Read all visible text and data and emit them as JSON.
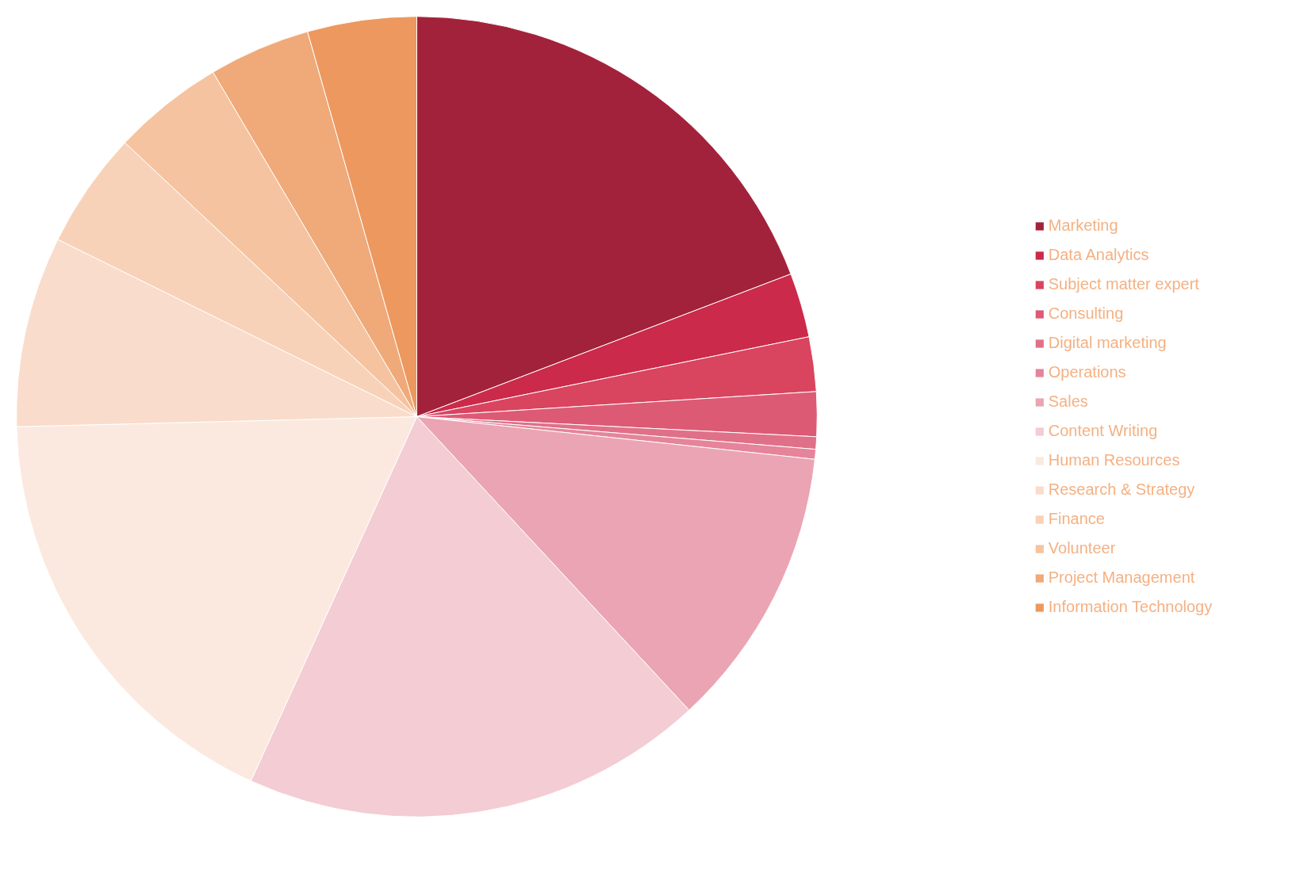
{
  "chart_data": {
    "type": "pie",
    "legend": "right",
    "categories": [
      "Marketing",
      "Data Analytics",
      "Subject matter expert",
      "Consulting",
      "Digital marketing",
      "Operations",
      "Sales",
      "Content Writing",
      "Human Resources",
      "Research & Strategy",
      "Finance",
      "Volunteer",
      "Project Management",
      "Information Technology"
    ],
    "values": [
      19.2,
      2.6,
      2.2,
      1.8,
      0.5,
      0.4,
      11.4,
      18.7,
      17.8,
      7.7,
      4.7,
      4.5,
      4.1,
      4.4
    ],
    "colors": [
      "#a3223b",
      "#cb2a4a",
      "#d9445f",
      "#dd5a74",
      "#e07088",
      "#e5849a",
      "#eba4b3",
      "#f3ccd4",
      "#fbe9df",
      "#f9dccb",
      "#f8d2b8",
      "#f5c39f",
      "#f0a978",
      "#ed985e"
    ]
  }
}
